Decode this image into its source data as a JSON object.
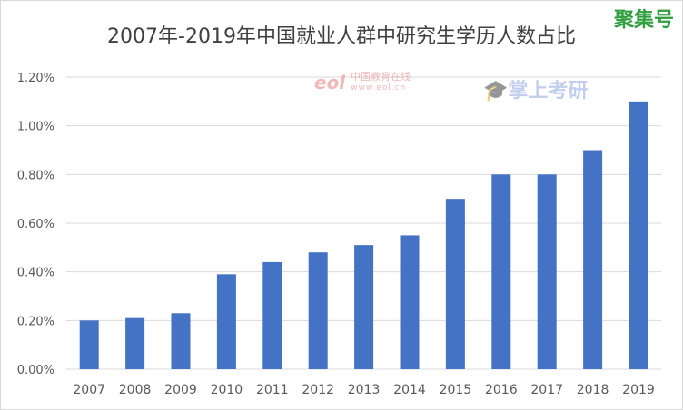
{
  "chart_data": {
    "type": "bar",
    "title": "2007年-2019年中国就业人群中研究生学历人数占比",
    "xlabel": "",
    "ylabel": "",
    "categories": [
      "2007",
      "2008",
      "2009",
      "2010",
      "2011",
      "2012",
      "2013",
      "2014",
      "2015",
      "2016",
      "2017",
      "2018",
      "2019"
    ],
    "values": [
      0.2,
      0.21,
      0.23,
      0.39,
      0.44,
      0.48,
      0.51,
      0.55,
      0.7,
      0.8,
      0.8,
      0.9,
      1.1
    ],
    "unit": "%",
    "ylim": [
      0,
      1.2
    ],
    "yticks": [
      "0.00%",
      "0.20%",
      "0.40%",
      "0.60%",
      "0.80%",
      "1.00%",
      "1.20%"
    ],
    "grid": true,
    "legend": "none",
    "bar_color": "#4472c4"
  },
  "watermarks": {
    "eol": "中国教育在线",
    "eol_url": "www.eol.cn",
    "zsky": "掌上考研",
    "corner": "聚集号"
  }
}
